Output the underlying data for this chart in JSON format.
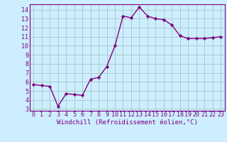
{
  "x": [
    0,
    1,
    2,
    3,
    4,
    5,
    6,
    7,
    8,
    9,
    10,
    11,
    12,
    13,
    14,
    15,
    16,
    17,
    18,
    19,
    20,
    21,
    22,
    23
  ],
  "y": [
    5.7,
    5.6,
    5.5,
    3.3,
    4.7,
    4.6,
    4.5,
    6.3,
    6.5,
    7.7,
    10.0,
    13.3,
    13.1,
    14.3,
    13.3,
    13.0,
    12.9,
    12.3,
    11.1,
    10.8,
    10.8,
    10.8,
    10.9,
    11.0
  ],
  "line_color": "#800080",
  "marker": "D",
  "marker_size": 2.2,
  "line_width": 1.0,
  "background_color": "#cceeff",
  "grid_color": "#aacccc",
  "tick_color": "#800080",
  "label_color": "#800080",
  "xlabel": "Windchill (Refroidissement éolien,°C)",
  "ylim": [
    2.8,
    14.6
  ],
  "xlim": [
    -0.5,
    23.5
  ],
  "yticks": [
    3,
    4,
    5,
    6,
    7,
    8,
    9,
    10,
    11,
    12,
    13,
    14
  ],
  "xticks": [
    0,
    1,
    2,
    3,
    4,
    5,
    6,
    7,
    8,
    9,
    10,
    11,
    12,
    13,
    14,
    15,
    16,
    17,
    18,
    19,
    20,
    21,
    22,
    23
  ],
  "tick_fontsize": 6.0,
  "xlabel_fontsize": 6.5
}
